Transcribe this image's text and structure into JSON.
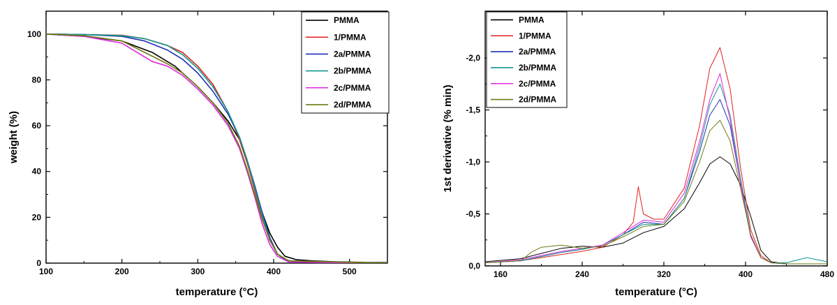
{
  "chart_data": [
    {
      "type": "line",
      "xlabel": "temperature (°C)",
      "ylabel": "weight (%)",
      "xlim": [
        100,
        550
      ],
      "ylim": [
        0,
        110
      ],
      "xticks": [
        100,
        200,
        300,
        400,
        500
      ],
      "xtick_labels": [
        "100",
        "200",
        "300",
        "400",
        "500"
      ],
      "yticks": [
        0,
        20,
        40,
        60,
        80,
        100
      ],
      "ytick_labels": [
        "0",
        "20",
        "40",
        "60",
        "80",
        "100"
      ],
      "legend_position": "top-right",
      "series": [
        {
          "name": "PMMA",
          "color": "#000000",
          "x": [
            100,
            150,
            200,
            240,
            270,
            300,
            320,
            340,
            355,
            365,
            375,
            385,
            395,
            405,
            415,
            430,
            450,
            480,
            520,
            550
          ],
          "y": [
            100,
            99,
            97,
            92,
            86,
            77,
            70,
            62,
            54,
            44,
            33,
            22,
            13,
            7,
            3,
            1.5,
            1,
            0.6,
            0.3,
            0.2
          ]
        },
        {
          "name": "1/PMMA",
          "color": "#e0201c",
          "x": [
            100,
            150,
            200,
            230,
            260,
            280,
            300,
            320,
            340,
            355,
            365,
            375,
            385,
            395,
            405,
            415,
            430,
            550
          ],
          "y": [
            100,
            99.8,
            99.5,
            98,
            95,
            92,
            86,
            78,
            66,
            54,
            44,
            32,
            20,
            10,
            4,
            1.5,
            0.5,
            0
          ]
        },
        {
          "name": "2a/PMMA",
          "color": "#1f2fb5",
          "x": [
            100,
            150,
            200,
            230,
            260,
            280,
            300,
            320,
            340,
            355,
            365,
            375,
            385,
            395,
            405,
            415,
            430,
            550
          ],
          "y": [
            100,
            99.8,
            99,
            97,
            93,
            89,
            83,
            75,
            65,
            55,
            45,
            34,
            22,
            11,
            4,
            1.5,
            0.5,
            0
          ]
        },
        {
          "name": "2b/PMMA",
          "color": "#11998e",
          "x": [
            100,
            150,
            200,
            230,
            260,
            280,
            300,
            320,
            340,
            355,
            365,
            375,
            385,
            395,
            405,
            415,
            430,
            550
          ],
          "y": [
            100,
            99.8,
            99.3,
            98,
            95,
            91,
            85,
            77,
            66,
            55,
            45,
            33,
            21,
            10,
            4,
            1.5,
            0.5,
            0
          ]
        },
        {
          "name": "2c/PMMA",
          "color": "#e026e0",
          "x": [
            100,
            150,
            200,
            220,
            240,
            260,
            280,
            300,
            320,
            340,
            355,
            365,
            375,
            385,
            395,
            405,
            420,
            550
          ],
          "y": [
            100,
            99,
            96,
            92,
            88,
            86,
            82,
            76,
            69,
            60,
            50,
            40,
            29,
            17,
            8,
            3,
            0.5,
            0
          ]
        },
        {
          "name": "2d/PMMA",
          "color": "#6e7a12",
          "x": [
            100,
            150,
            200,
            230,
            260,
            280,
            300,
            320,
            340,
            355,
            365,
            375,
            385,
            395,
            405,
            420,
            550
          ],
          "y": [
            100,
            99.3,
            97,
            92,
            87,
            83,
            77,
            70,
            61,
            51,
            41,
            30,
            19,
            10,
            4,
            1,
            0
          ]
        }
      ]
    },
    {
      "type": "line",
      "xlabel": "temperature (°C)",
      "ylabel": "1st derivative (% min)",
      "xlim": [
        145,
        480
      ],
      "ylim": [
        0,
        -2.45
      ],
      "xticks": [
        160,
        240,
        320,
        400,
        480
      ],
      "xtick_labels": [
        "160",
        "240",
        "320",
        "400",
        "480"
      ],
      "yticks": [
        0,
        -0.5,
        -1.0,
        -1.5,
        -2.0
      ],
      "ytick_labels": [
        "0,0",
        "-0,5",
        "-1,0",
        "-1,5",
        "-2,0"
      ],
      "legend_position": "top-left",
      "series": [
        {
          "name": "PMMA",
          "color": "#000000",
          "x": [
            145,
            180,
            200,
            220,
            240,
            260,
            280,
            300,
            320,
            340,
            355,
            365,
            375,
            385,
            395,
            405,
            415,
            425,
            440,
            480
          ],
          "y": [
            -0.04,
            -0.07,
            -0.12,
            -0.17,
            -0.19,
            -0.18,
            -0.22,
            -0.32,
            -0.38,
            -0.55,
            -0.8,
            -0.98,
            -1.05,
            -0.98,
            -0.78,
            -0.48,
            -0.15,
            -0.04,
            -0.02,
            -0.02
          ]
        },
        {
          "name": "1/PMMA",
          "color": "#e0201c",
          "x": [
            145,
            180,
            200,
            220,
            240,
            260,
            280,
            290,
            295,
            300,
            310,
            320,
            340,
            355,
            365,
            375,
            385,
            395,
            405,
            415,
            425,
            440,
            480
          ],
          "y": [
            -0.03,
            -0.05,
            -0.08,
            -0.11,
            -0.14,
            -0.18,
            -0.3,
            -0.42,
            -0.76,
            -0.5,
            -0.45,
            -0.45,
            -0.75,
            -1.35,
            -1.9,
            -2.1,
            -1.7,
            -0.95,
            -0.35,
            -0.1,
            -0.03,
            -0.02,
            -0.02
          ]
        },
        {
          "name": "2a/PMMA",
          "color": "#1f2fb5",
          "x": [
            145,
            180,
            200,
            220,
            240,
            260,
            280,
            300,
            320,
            340,
            355,
            365,
            375,
            385,
            395,
            405,
            415,
            425,
            440,
            480
          ],
          "y": [
            -0.03,
            -0.05,
            -0.09,
            -0.13,
            -0.16,
            -0.2,
            -0.3,
            -0.42,
            -0.4,
            -0.65,
            -1.1,
            -1.45,
            -1.6,
            -1.35,
            -0.8,
            -0.3,
            -0.08,
            -0.03,
            -0.02,
            -0.02
          ]
        },
        {
          "name": "2b/PMMA",
          "color": "#11998e",
          "x": [
            145,
            180,
            200,
            220,
            240,
            260,
            280,
            300,
            320,
            340,
            355,
            365,
            375,
            385,
            395,
            405,
            415,
            425,
            440,
            460,
            480
          ],
          "y": [
            -0.03,
            -0.05,
            -0.09,
            -0.13,
            -0.16,
            -0.2,
            -0.3,
            -0.4,
            -0.4,
            -0.65,
            -1.15,
            -1.55,
            -1.75,
            -1.45,
            -0.85,
            -0.3,
            -0.08,
            -0.03,
            -0.03,
            -0.08,
            -0.04
          ]
        },
        {
          "name": "2c/PMMA",
          "color": "#e026e0",
          "x": [
            145,
            180,
            200,
            220,
            240,
            260,
            280,
            300,
            320,
            340,
            355,
            365,
            375,
            385,
            395,
            405,
            415,
            425,
            440,
            480
          ],
          "y": [
            -0.03,
            -0.06,
            -0.1,
            -0.14,
            -0.17,
            -0.2,
            -0.32,
            -0.44,
            -0.42,
            -0.7,
            -1.2,
            -1.6,
            -1.85,
            -1.4,
            -0.8,
            -0.28,
            -0.08,
            -0.03,
            -0.02,
            -0.02
          ]
        },
        {
          "name": "2d/PMMA",
          "color": "#6e7a12",
          "x": [
            145,
            180,
            190,
            200,
            220,
            240,
            260,
            280,
            300,
            320,
            340,
            355,
            365,
            375,
            385,
            395,
            405,
            415,
            425,
            440,
            480
          ],
          "y": [
            -0.03,
            -0.05,
            -0.13,
            -0.18,
            -0.2,
            -0.17,
            -0.19,
            -0.28,
            -0.38,
            -0.4,
            -0.62,
            -1.0,
            -1.3,
            -1.4,
            -1.2,
            -0.75,
            -0.3,
            -0.08,
            -0.03,
            -0.02,
            -0.02
          ]
        }
      ]
    }
  ]
}
